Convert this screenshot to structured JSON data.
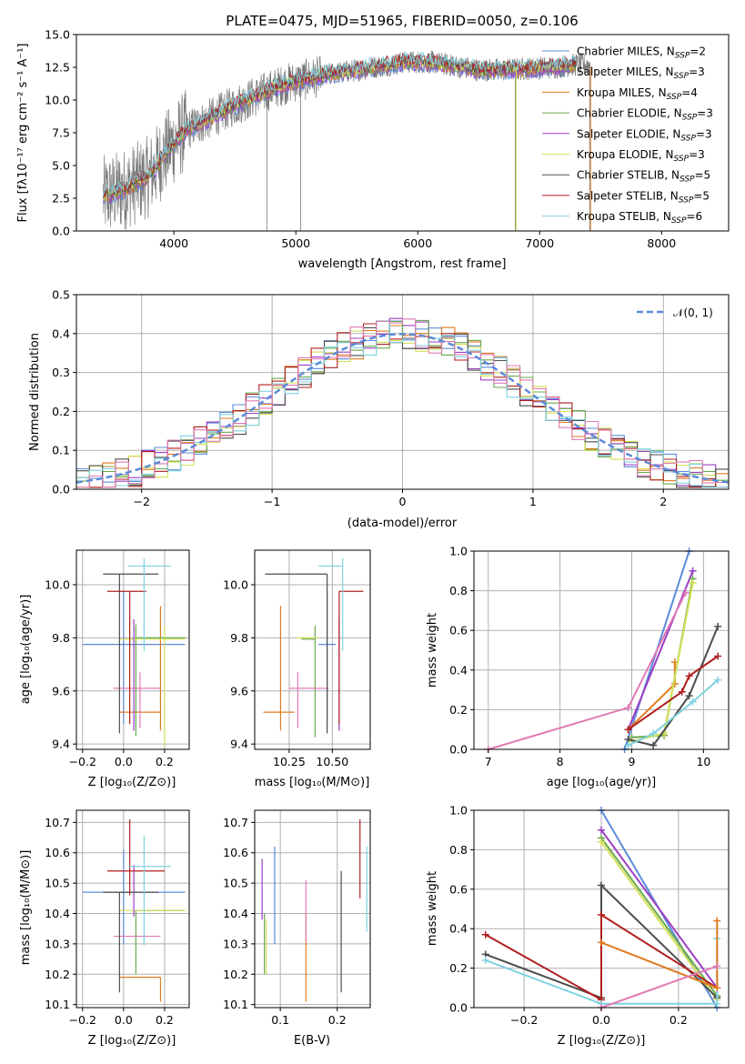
{
  "figure": {
    "title": "PLATE=0475, MJD=51965, FIBERID=0050, z=0.106"
  },
  "colors": {
    "chabrier_miles": "#5b8bd9",
    "salpeter_miles": "#9c3ec6",
    "kroupa_miles": "#e07b1f",
    "chabrier_elodie": "#6aa84f",
    "salpeter_elodie": "#9c3ec6",
    "kroupa_elodie": "#d4e157",
    "chabrier_stelib": "#4d4d4d",
    "salpeter_stelib": "#b01f1f",
    "kroupa_stelib": "#7fd3e0",
    "pink": "#e07bb4",
    "spectrum_data": "#7a7a7a",
    "grid": "#b0b0b0",
    "normal_curve": "#5b8bd9"
  },
  "chart_data": [
    {
      "id": "spectrum",
      "type": "line",
      "title": "PLATE=0475, MJD=51965, FIBERID=0050, z=0.106",
      "xlabel": "wavelength [Angstrom, rest frame]",
      "ylabel": "Flux [fλ10⁻¹⁷ erg cm⁻² s⁻¹ A⁻¹]",
      "xlim": [
        3200,
        8550
      ],
      "ylim": [
        0,
        15
      ],
      "xticks": [
        4000,
        5000,
        6000,
        7000,
        8000
      ],
      "yticks": [
        0.0,
        2.5,
        5.0,
        7.5,
        10.0,
        12.5,
        15.0
      ],
      "grid": false,
      "legend_position": "top-right",
      "legend": [
        {
          "name": "Chabrier MILES",
          "nssp": "2",
          "color_key": "chabrier_miles"
        },
        {
          "name": "Salpeter MILES",
          "nssp": "3",
          "color_key": "salpeter_miles"
        },
        {
          "name": "Kroupa MILES",
          "nssp": "4",
          "color_key": "kroupa_miles"
        },
        {
          "name": "Chabrier ELODIE",
          "nssp": "3",
          "color_key": "chabrier_elodie"
        },
        {
          "name": "Salpeter ELODIE",
          "nssp": "3",
          "color_key": "salpeter_elodie"
        },
        {
          "name": "Kroupa ELODIE",
          "nssp": "3",
          "color_key": "kroupa_elodie"
        },
        {
          "name": "Chabrier STELIB",
          "nssp": "5",
          "color_key": "chabrier_stelib"
        },
        {
          "name": "Salpeter STELIB",
          "nssp": "5",
          "color_key": "salpeter_stelib"
        },
        {
          "name": "Kroupa STELIB",
          "nssp": "6",
          "color_key": "kroupa_stelib"
        }
      ],
      "continuum": [
        [
          3420,
          2.6
        ],
        [
          3600,
          3.2
        ],
        [
          3800,
          4.2
        ],
        [
          3950,
          6.2
        ],
        [
          4100,
          7.7
        ],
        [
          4300,
          8.6
        ],
        [
          4500,
          9.6
        ],
        [
          4700,
          10.4
        ],
        [
          4900,
          11.2
        ],
        [
          5100,
          11.6
        ],
        [
          5300,
          12.0
        ],
        [
          5500,
          12.3
        ],
        [
          5700,
          12.6
        ],
        [
          5900,
          12.9
        ],
        [
          6100,
          12.9
        ],
        [
          6300,
          12.6
        ],
        [
          6500,
          12.3
        ],
        [
          6700,
          12.3
        ],
        [
          6900,
          12.4
        ],
        [
          7100,
          12.5
        ],
        [
          7300,
          12.7
        ],
        [
          7420,
          12.7
        ]
      ],
      "data_range": [
        3420,
        7420
      ],
      "spikes": [
        4762,
        5040,
        6800,
        7410
      ],
      "model_range": [
        3420,
        7300
      ]
    },
    {
      "id": "residuals",
      "type": "histogram",
      "xlabel": "(data-model)/error",
      "ylabel": "Normed distribution",
      "xlim": [
        -2.5,
        2.5
      ],
      "ylim": [
        0,
        0.5
      ],
      "xticks": [
        -2,
        -1,
        0,
        1,
        2
      ],
      "yticks": [
        0.0,
        0.1,
        0.2,
        0.3,
        0.4,
        0.5
      ],
      "grid": true,
      "legend_position": "top-right",
      "normal_label": "𝒩(0, 1)",
      "bin_width": 0.1
    },
    {
      "id": "age_vs_Z",
      "type": "errorbar",
      "xlabel": "Z [log₁₀(Z/Z⊙)]",
      "ylabel": "age  [log₁₀(age/yr)]",
      "xlim": [
        -0.23,
        0.32
      ],
      "ylim": [
        9.38,
        10.13
      ],
      "xticks": [
        -0.2,
        0.0,
        0.2
      ],
      "yticks": [
        9.4,
        9.6,
        9.8,
        10.0
      ],
      "grid": true
    },
    {
      "id": "age_vs_mass",
      "type": "errorbar",
      "xlabel": "mass [log₁₀(M/M⊙)]",
      "ylabel": "",
      "xlim": [
        10.05,
        10.72
      ],
      "ylim": [
        9.38,
        10.13
      ],
      "xticks": [
        10.25,
        10.5
      ],
      "yticks": [
        9.4,
        9.6,
        9.8,
        10.0
      ],
      "grid": true
    },
    {
      "id": "massweight_vs_age",
      "type": "line",
      "xlabel": "age  [log₁₀(age/yr)]",
      "ylabel": "mass weight",
      "xlim": [
        6.8,
        10.35
      ],
      "ylim": [
        0,
        1
      ],
      "xticks": [
        7,
        8,
        9,
        10
      ],
      "yticks": [
        0.0,
        0.2,
        0.4,
        0.6,
        0.8,
        1.0
      ],
      "grid": true,
      "series": [
        {
          "color_key": "chabrier_miles",
          "x": [
            8.9,
            9.8
          ],
          "y": [
            0.0,
            1.0
          ]
        },
        {
          "color_key": "salpeter_miles",
          "x": [
            8.95,
            9.85
          ],
          "y": [
            0.1,
            0.9
          ]
        },
        {
          "color_key": "pink",
          "x": [
            7.0,
            8.95,
            9.75
          ],
          "y": [
            0.0,
            0.21,
            0.79
          ]
        },
        {
          "color_key": "kroupa_miles",
          "x": [
            8.95,
            9.6,
            9.6
          ],
          "y": [
            0.1,
            0.33,
            0.44
          ]
        },
        {
          "color_key": "chabrier_elodie",
          "x": [
            9.0,
            9.45,
            9.85
          ],
          "y": [
            0.06,
            0.07,
            0.86
          ]
        },
        {
          "color_key": "kroupa_elodie",
          "x": [
            9.0,
            9.45,
            9.85
          ],
          "y": [
            0.04,
            0.08,
            0.84
          ]
        },
        {
          "color_key": "chabrier_stelib",
          "x": [
            8.95,
            9.3,
            9.8,
            10.2
          ],
          "y": [
            0.05,
            0.02,
            0.27,
            0.62
          ]
        },
        {
          "color_key": "salpeter_stelib",
          "x": [
            8.95,
            9.7,
            9.8,
            10.2
          ],
          "y": [
            0.1,
            0.29,
            0.37,
            0.47
          ]
        },
        {
          "color_key": "kroupa_stelib",
          "x": [
            8.95,
            9.3,
            9.85,
            10.2
          ],
          "y": [
            0.02,
            0.08,
            0.24,
            0.35
          ]
        }
      ]
    },
    {
      "id": "mass_vs_Z",
      "type": "errorbar",
      "xlabel": "Z [log₁₀(Z/Z⊙)]",
      "ylabel": "mass [log₁₀(M/M⊙)]",
      "xlim": [
        -0.23,
        0.32
      ],
      "ylim": [
        10.09,
        10.74
      ],
      "xticks": [
        -0.2,
        0.0,
        0.2
      ],
      "yticks": [
        10.1,
        10.2,
        10.3,
        10.4,
        10.5,
        10.6,
        10.7
      ],
      "grid": true
    },
    {
      "id": "mass_vs_ebv",
      "type": "errorbar",
      "xlabel": "E(B-V)",
      "ylabel": "",
      "xlim": [
        0.055,
        0.258
      ],
      "ylim": [
        10.09,
        10.74
      ],
      "xticks": [
        0.1,
        0.2
      ],
      "yticks": [
        10.1,
        10.2,
        10.3,
        10.4,
        10.5,
        10.6,
        10.7
      ],
      "grid": true
    },
    {
      "id": "massweight_vs_Z",
      "type": "line",
      "xlabel": "Z [log₁₀(Z/Z⊙)]",
      "ylabel": "mass weight",
      "xlim": [
        -0.33,
        0.33
      ],
      "ylim": [
        0,
        1
      ],
      "xticks": [
        -0.2,
        0.0,
        0.2
      ],
      "yticks": [
        0.0,
        0.2,
        0.4,
        0.6,
        0.8,
        1.0
      ],
      "grid": true,
      "series": [
        {
          "color_key": "chabrier_miles",
          "x": [
            0.0,
            0.3
          ],
          "y": [
            1.0,
            0.0
          ]
        },
        {
          "color_key": "salpeter_miles",
          "x": [
            0.0,
            0.3
          ],
          "y": [
            0.9,
            0.1
          ]
        },
        {
          "color_key": "chabrier_elodie",
          "x": [
            0.0,
            0.3
          ],
          "y": [
            0.86,
            0.06
          ]
        },
        {
          "color_key": "kroupa_elodie",
          "x": [
            0.0,
            0.3
          ],
          "y": [
            0.84,
            0.04
          ]
        },
        {
          "color_key": "chabrier_stelib",
          "x": [
            -0.3,
            0.0,
            0.0,
            0.3
          ],
          "y": [
            0.27,
            0.05,
            0.62,
            0.05
          ]
        },
        {
          "color_key": "salpeter_stelib",
          "x": [
            -0.3,
            0.0,
            0.0,
            0.3
          ],
          "y": [
            0.37,
            0.04,
            0.47,
            0.1
          ]
        },
        {
          "color_key": "kroupa_stelib",
          "x": [
            -0.3,
            0.0,
            0.3,
            0.3
          ],
          "y": [
            0.24,
            0.02,
            0.02,
            0.35
          ]
        },
        {
          "color_key": "kroupa_miles",
          "x": [
            0.0,
            0.3,
            0.3
          ],
          "y": [
            0.33,
            0.1,
            0.44
          ]
        },
        {
          "color_key": "pink",
          "x": [
            0.0,
            0.3
          ],
          "y": [
            0.0,
            0.21
          ]
        }
      ]
    }
  ]
}
